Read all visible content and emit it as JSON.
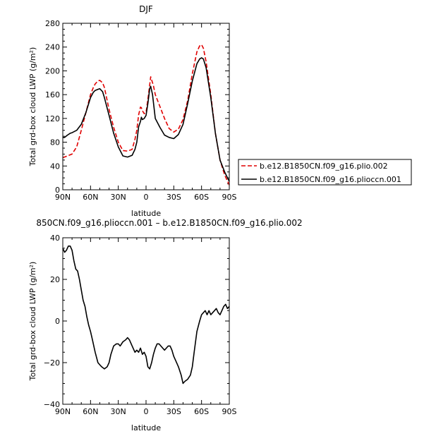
{
  "chart_data": [
    {
      "type": "line",
      "title": "DJF",
      "xlabel": "latitude",
      "ylabel": "Total grd-box cloud LWP (g/m²)",
      "x_ticks": [
        "90N",
        "60N",
        "30N",
        "0",
        "30S",
        "60S",
        "90S"
      ],
      "x_range": [
        90,
        -90
      ],
      "ylim": [
        0,
        280
      ],
      "y_ticks": [
        0,
        40,
        80,
        120,
        160,
        200,
        240,
        280
      ],
      "grid": false,
      "legend_position": "right",
      "series": [
        {
          "name": "b.e12.B1850CN.f09_g16.plio.002",
          "color": "#e00000",
          "dash": "dashed",
          "x": [
            90,
            85,
            80,
            75,
            70,
            65,
            60,
            57,
            55,
            52,
            50,
            47,
            45,
            40,
            35,
            30,
            25,
            20,
            15,
            12,
            10,
            8,
            6,
            5,
            4,
            2,
            0,
            -2,
            -5,
            -8,
            -10,
            -15,
            -20,
            -25,
            -30,
            -35,
            -40,
            -45,
            -50,
            -55,
            -58,
            -60,
            -62,
            -65,
            -70,
            -75,
            -80,
            -85,
            -90
          ],
          "y": [
            54,
            57,
            60,
            72,
            100,
            130,
            160,
            172,
            178,
            183,
            184,
            180,
            172,
            135,
            105,
            80,
            66,
            65,
            68,
            85,
            100,
            126,
            139,
            138,
            133,
            128,
            130,
            152,
            190,
            175,
            160,
            140,
            120,
            103,
            97,
            102,
            118,
            150,
            195,
            232,
            242,
            244,
            238,
            215,
            160,
            95,
            50,
            25,
            8
          ]
        },
        {
          "name": "b.e12.B1850CN.f09_g16.plioccn.001",
          "color": "#000000",
          "dash": "solid",
          "x": [
            90,
            88,
            85,
            82,
            80,
            75,
            70,
            65,
            60,
            57,
            55,
            52,
            50,
            47,
            45,
            40,
            35,
            30,
            25,
            20,
            15,
            12,
            10,
            8,
            6,
            5,
            4,
            2,
            0,
            -2,
            -4,
            -5,
            -7,
            -10,
            -15,
            -20,
            -25,
            -30,
            -35,
            -40,
            -45,
            -50,
            -55,
            -58,
            -60,
            -62,
            -65,
            -70,
            -75,
            -80,
            -85,
            -90
          ],
          "y": [
            88,
            88,
            92,
            95,
            96,
            100,
            110,
            130,
            155,
            164,
            167,
            169,
            170,
            165,
            155,
            125,
            95,
            72,
            57,
            55,
            58,
            68,
            80,
            106,
            115,
            122,
            118,
            120,
            125,
            145,
            170,
            174,
            160,
            120,
            105,
            92,
            88,
            86,
            93,
            110,
            145,
            183,
            212,
            220,
            222,
            220,
            205,
            155,
            95,
            50,
            30,
            14
          ]
        }
      ]
    },
    {
      "type": "line",
      "title": "850CN.f09_g16.plioccn.001 – b.e12.B1850CN.f09_g16.plio.002",
      "xlabel": "latitude",
      "ylabel": "Total grd-box cloud LWP (g/m²)",
      "x_ticks": [
        "90N",
        "60N",
        "30N",
        "0",
        "30S",
        "60S",
        "90S"
      ],
      "x_range": [
        90,
        -90
      ],
      "ylim": [
        -40,
        40
      ],
      "y_ticks": [
        -40,
        -20,
        0,
        20,
        40
      ],
      "grid": false,
      "series": [
        {
          "color": "#000000",
          "dash": "solid",
          "x": [
            90,
            88,
            86,
            84,
            82,
            80,
            78,
            76,
            74,
            72,
            70,
            68,
            66,
            64,
            62,
            60,
            58,
            55,
            52,
            50,
            48,
            45,
            42,
            40,
            38,
            35,
            32,
            30,
            28,
            25,
            22,
            20,
            18,
            15,
            12,
            10,
            8,
            6,
            4,
            2,
            0,
            -2,
            -4,
            -6,
            -8,
            -10,
            -12,
            -14,
            -16,
            -18,
            -20,
            -22,
            -24,
            -26,
            -28,
            -30,
            -32,
            -35,
            -38,
            -40,
            -42,
            -45,
            -48,
            -50,
            -52,
            -55,
            -58,
            -60,
            -62,
            -64,
            -66,
            -68,
            -70,
            -72,
            -74,
            -76,
            -78,
            -80,
            -82,
            -84,
            -86,
            -88,
            -90
          ],
          "y": [
            35,
            33,
            34,
            36,
            36,
            34,
            29,
            25,
            24,
            20,
            15,
            10,
            7,
            2,
            -2,
            -5,
            -9,
            -15,
            -20,
            -21,
            -22,
            -23,
            -22,
            -20,
            -16,
            -12,
            -11,
            -11,
            -12,
            -10,
            -9,
            -8,
            -9,
            -12,
            -15,
            -14,
            -15,
            -13,
            -16,
            -15,
            -17,
            -22,
            -23,
            -20,
            -16,
            -13,
            -11,
            -11,
            -12,
            -13,
            -14,
            -13,
            -12,
            -12,
            -14,
            -17,
            -19,
            -22,
            -26,
            -30,
            -29,
            -28,
            -26,
            -22,
            -15,
            -5,
            0,
            3,
            4,
            5,
            3,
            5,
            3,
            4,
            5,
            6,
            4,
            3,
            5,
            7,
            8,
            6,
            7
          ]
        }
      ]
    }
  ]
}
